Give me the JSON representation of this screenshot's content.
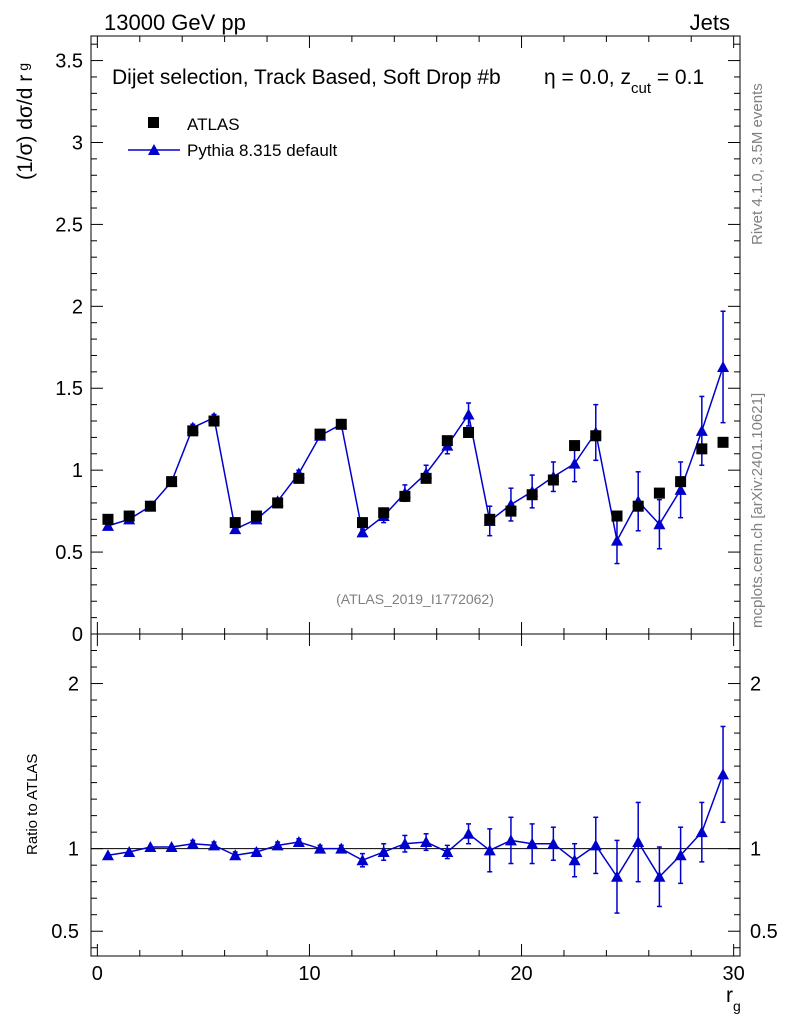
{
  "chart_data": {
    "type": "scatter",
    "header_left": "13000 GeV pp",
    "header_right": "Jets",
    "title": "Dijet selection, Track Based, Soft Drop #b",
    "title_eta": "η = 0.0, z",
    "title_cut": "cut",
    "title_tail": " = 0.1",
    "ylabel_main": "(1/σ) dσ/d r",
    "ylabel_sub": "g",
    "ylabel_ratio": "Ratio to ATLAS",
    "xlabel_main": "r",
    "xlabel_sub": "g",
    "watermark": "(ATLAS_2019_I1772062)",
    "side_label_top": "Rivet 4.1.0,  3.5M events",
    "side_label_bottom": "mcplots.cern.ch [arXiv:2401.10621]",
    "xlim": [
      -0.3,
      30.3
    ],
    "ylim_main": [
      0,
      3.65
    ],
    "ylim_ratio": [
      0.35,
      2.3
    ],
    "x_ticks": [
      "0",
      "10",
      "20",
      "30"
    ],
    "y_ticks_main": [
      "0",
      "0.5",
      "1",
      "1.5",
      "2",
      "2.5",
      "3",
      "3.5"
    ],
    "y_ticks_ratio": [
      "0.5",
      "1",
      "2"
    ],
    "x": [
      0.5,
      1.5,
      2.5,
      3.5,
      4.5,
      5.5,
      6.5,
      7.5,
      8.5,
      9.5,
      10.5,
      11.5,
      12.5,
      13.5,
      14.5,
      15.5,
      16.5,
      17.5,
      18.5,
      19.5,
      20.5,
      21.5,
      22.5,
      23.5,
      24.5,
      25.5,
      26.5,
      27.5,
      28.5,
      29.5
    ],
    "series": [
      {
        "name": "ATLAS",
        "color": "#000000",
        "marker": "square",
        "values": [
          0.7,
          0.72,
          0.78,
          0.93,
          1.24,
          1.3,
          0.68,
          0.72,
          0.8,
          0.95,
          1.22,
          1.28,
          0.68,
          0.74,
          0.84,
          0.95,
          1.18,
          1.23,
          0.7,
          0.75,
          0.85,
          0.94,
          1.15,
          1.21,
          0.72,
          0.78,
          0.86,
          0.93,
          1.13,
          1.17
        ]
      },
      {
        "name": "Pythia 8.315 default",
        "color": "#0000cc",
        "marker": "triangle",
        "values": [
          0.66,
          0.7,
          0.78,
          0.93,
          1.26,
          1.32,
          0.64,
          0.7,
          0.81,
          0.98,
          1.21,
          1.28,
          0.62,
          0.72,
          0.86,
          0.98,
          1.15,
          1.34,
          0.69,
          0.79,
          0.87,
          0.96,
          1.04,
          1.23,
          0.57,
          0.81,
          0.67,
          0.88,
          1.24,
          1.63
        ],
        "errors": [
          0.01,
          0.01,
          0.01,
          0.01,
          0.02,
          0.02,
          0.01,
          0.01,
          0.01,
          0.02,
          0.02,
          0.02,
          0.02,
          0.04,
          0.05,
          0.05,
          0.05,
          0.07,
          0.09,
          0.1,
          0.1,
          0.09,
          0.11,
          0.17,
          0.14,
          0.18,
          0.15,
          0.17,
          0.21,
          0.34
        ],
        "ratio": [
          0.96,
          0.98,
          1.01,
          1.01,
          1.03,
          1.02,
          0.96,
          0.98,
          1.02,
          1.04,
          1.0,
          1.0,
          0.93,
          0.98,
          1.03,
          1.04,
          0.98,
          1.09,
          0.99,
          1.05,
          1.03,
          1.03,
          0.93,
          1.02,
          0.83,
          1.04,
          0.83,
          0.96,
          1.1,
          1.45
        ],
        "ratio_errors": [
          0.01,
          0.01,
          0.01,
          0.01,
          0.02,
          0.02,
          0.02,
          0.02,
          0.02,
          0.02,
          0.02,
          0.02,
          0.04,
          0.05,
          0.05,
          0.05,
          0.04,
          0.06,
          0.13,
          0.14,
          0.12,
          0.1,
          0.1,
          0.17,
          0.22,
          0.24,
          0.18,
          0.17,
          0.18,
          0.29
        ]
      }
    ]
  }
}
